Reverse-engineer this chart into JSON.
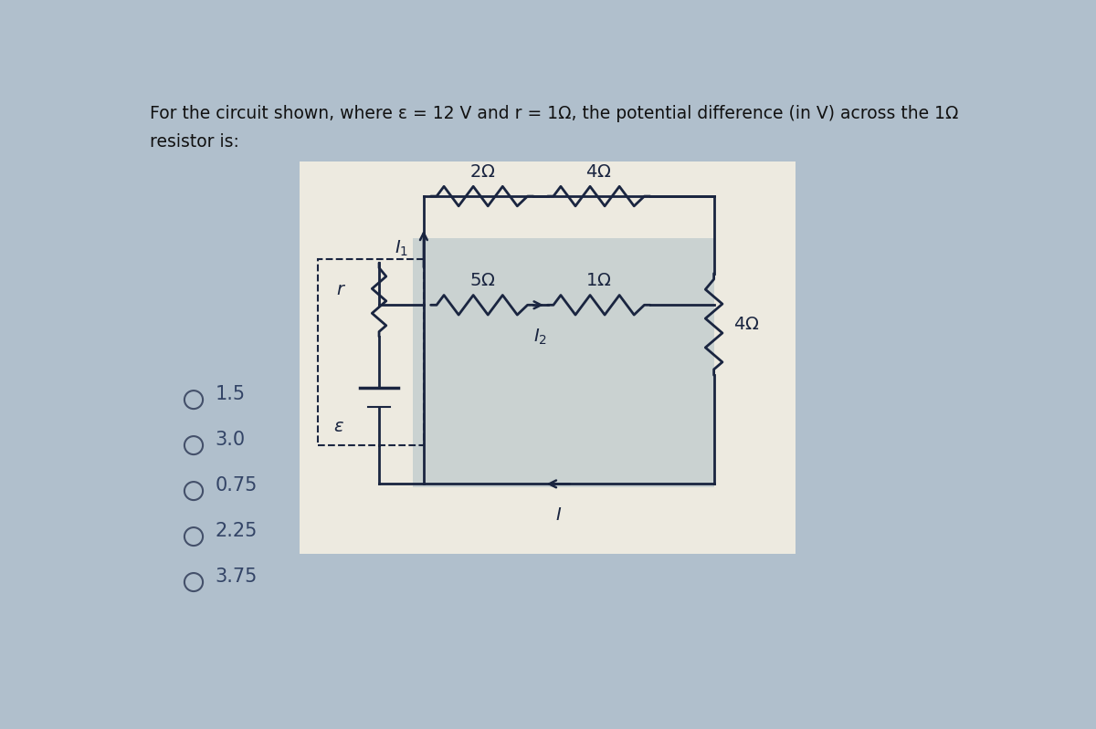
{
  "title_line1": "For the circuit shown, where ε = 12 V and r = 1Ω, the potential difference (in V) across the 1Ω",
  "title_line2": "resistor is:",
  "title_fontsize": 13.5,
  "bg_color": "#b0bfcc",
  "circuit_outer_bg": "#edeae0",
  "circuit_inner_bg": "#c8d4d8",
  "options": [
    "1.5",
    "3.0",
    "0.75",
    "2.25",
    "3.75"
  ],
  "options_fontsize": 15,
  "line_color": "#1a2540",
  "label_fontsize": 13
}
